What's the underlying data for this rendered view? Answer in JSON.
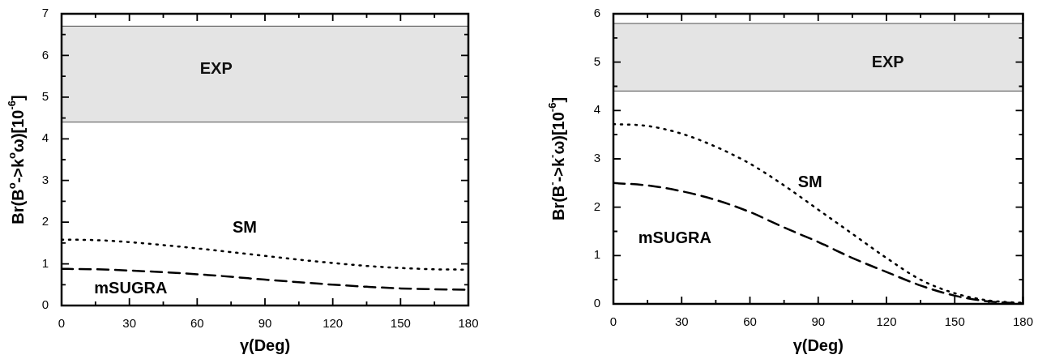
{
  "chart_data": [
    {
      "type": "line",
      "xlabel": "γ(Deg)",
      "ylabel": "Br(B$^{o}$->k$^{o}$ω)[10$^{-6}$]",
      "x": [
        0,
        15,
        30,
        45,
        60,
        75,
        90,
        105,
        120,
        135,
        150,
        165,
        180
      ],
      "series": [
        {
          "name": "SM",
          "color": "#000000",
          "line_style": "dotted",
          "values": [
            1.58,
            1.57,
            1.52,
            1.45,
            1.37,
            1.28,
            1.19,
            1.1,
            1.02,
            0.95,
            0.9,
            0.87,
            0.86
          ]
        },
        {
          "name": "mSUGRA",
          "color": "#000000",
          "line_style": "dashed",
          "values": [
            0.88,
            0.87,
            0.84,
            0.8,
            0.75,
            0.69,
            0.62,
            0.56,
            0.5,
            0.45,
            0.41,
            0.39,
            0.38
          ]
        }
      ],
      "xlim": [
        0,
        180
      ],
      "xticks": [
        0,
        {
          "value": 15,
          "label": null
        },
        30,
        {
          "value": 45,
          "label": null
        },
        60,
        {
          "value": 75,
          "label": null
        },
        90,
        {
          "value": 105,
          "label": null
        },
        120,
        {
          "value": 135,
          "label": null
        },
        150,
        {
          "value": 165,
          "label": null
        },
        180
      ],
      "ylim": [
        0,
        7
      ],
      "yticks": [
        0,
        {
          "value": 0.5,
          "label": null
        },
        1,
        {
          "value": 1.5,
          "label": null
        },
        2,
        {
          "value": 2.5,
          "label": null
        },
        3,
        {
          "value": 3.5,
          "label": null
        },
        4,
        {
          "value": 4.5,
          "label": null
        },
        5,
        {
          "value": 5.5,
          "label": null
        },
        6,
        {
          "value": 6.5,
          "label": null
        },
        7
      ],
      "bands": [
        {
          "axis": "y",
          "from": 4.4,
          "to": 6.7,
          "label": "EXP",
          "color": "#e4e4e4"
        }
      ],
      "ref_lines": [
        {
          "axis": "y",
          "value": 4.4,
          "color": "#707070"
        },
        {
          "axis": "y",
          "value": 6.7,
          "color": "#707070"
        }
      ],
      "grid": false,
      "legend": false,
      "marker": "none"
    },
    {
      "type": "line",
      "xlabel": "γ(Deg)",
      "ylabel": "Br(B$^{-}$->k$^{-}$ω)[10$^{-6}$]",
      "x": [
        0,
        15,
        30,
        45,
        60,
        75,
        90,
        105,
        120,
        135,
        150,
        165,
        180
      ],
      "series": [
        {
          "name": "SM",
          "color": "#000000",
          "line_style": "dotted",
          "values": [
            3.72,
            3.68,
            3.52,
            3.25,
            2.9,
            2.45,
            1.95,
            1.45,
            0.95,
            0.5,
            0.22,
            0.07,
            0.02
          ]
        },
        {
          "name": "mSUGRA",
          "color": "#000000",
          "line_style": "dashed",
          "values": [
            2.5,
            2.45,
            2.33,
            2.15,
            1.9,
            1.58,
            1.28,
            0.95,
            0.66,
            0.38,
            0.17,
            0.05,
            0.01
          ]
        }
      ],
      "xlim": [
        0,
        180
      ],
      "xticks": [
        0,
        {
          "value": 15,
          "label": null
        },
        30,
        {
          "value": 45,
          "label": null
        },
        60,
        {
          "value": 75,
          "label": null
        },
        90,
        {
          "value": 105,
          "label": null
        },
        120,
        {
          "value": 135,
          "label": null
        },
        150,
        {
          "value": 165,
          "label": null
        },
        180
      ],
      "ylim": [
        0,
        6
      ],
      "yticks": [
        0,
        {
          "value": 0.5,
          "label": null
        },
        1,
        {
          "value": 1.5,
          "label": null
        },
        2,
        {
          "value": 2.5,
          "label": null
        },
        3,
        {
          "value": 3.5,
          "label": null
        },
        4,
        {
          "value": 4.5,
          "label": null
        },
        5,
        {
          "value": 5.5,
          "label": null
        },
        6
      ],
      "bands": [
        {
          "axis": "y",
          "from": 4.4,
          "to": 5.8,
          "label": "EXP",
          "color": "#e4e4e4"
        }
      ],
      "ref_lines": [
        {
          "axis": "y",
          "value": 4.4,
          "color": "#707070"
        },
        {
          "axis": "y",
          "value": 5.8,
          "color": "#707070"
        }
      ],
      "grid": false,
      "legend": false,
      "marker": "none"
    }
  ]
}
